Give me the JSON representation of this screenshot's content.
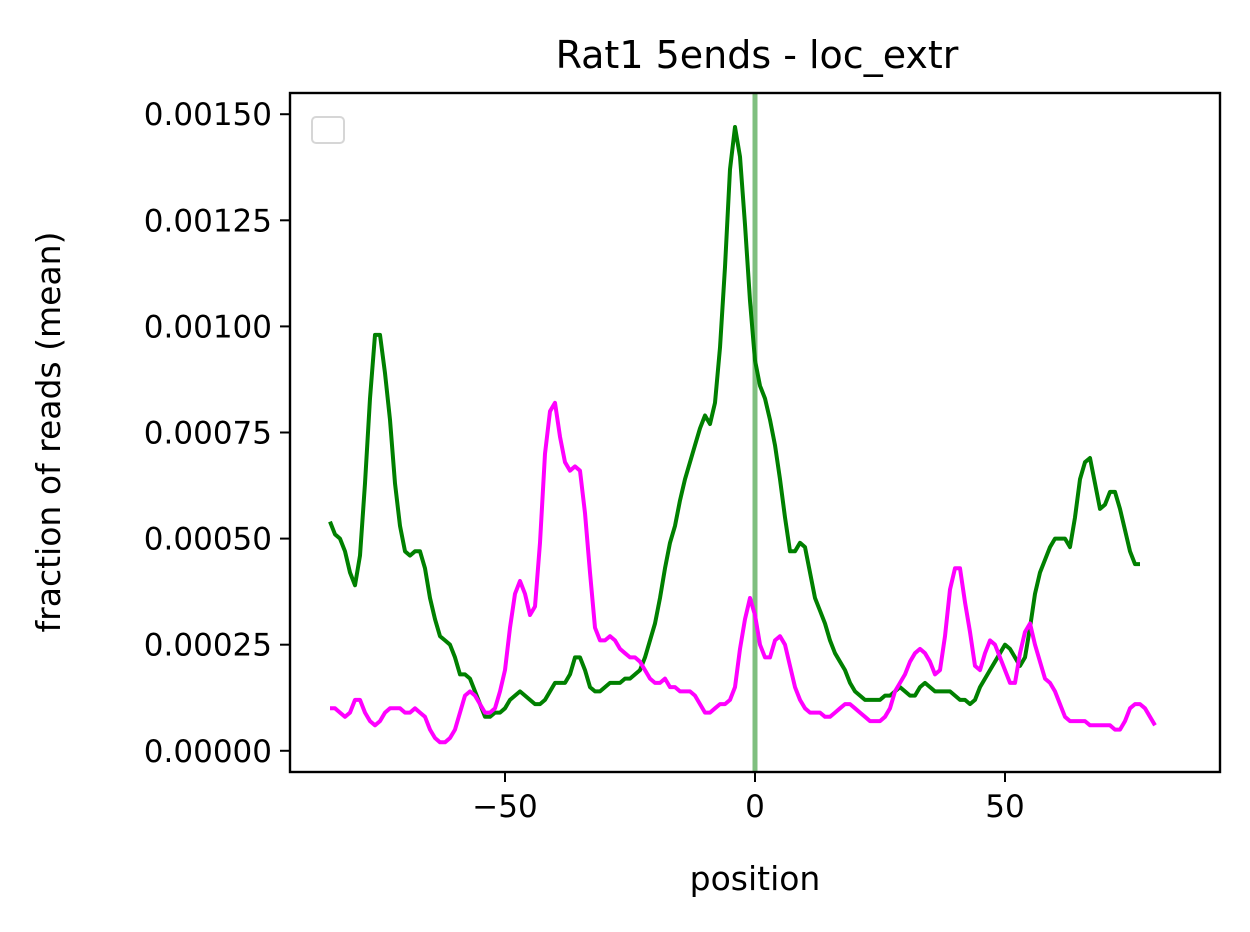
{
  "chart_data": {
    "type": "line",
    "title": "Rat1 5ends - loc_extr",
    "xlabel": "position",
    "ylabel": "fraction of reads (mean)",
    "xlim": [
      -93,
      93
    ],
    "ylim": [
      -5e-05,
      0.00155
    ],
    "xticks": [
      -50,
      0,
      50
    ],
    "xtick_labels": [
      "−50",
      "0",
      "50"
    ],
    "yticks": [
      0,
      0.00025,
      0.0005,
      0.00075,
      0.001,
      0.00125,
      0.0015
    ],
    "ytick_labels": [
      "0.00000",
      "0.00025",
      "0.00050",
      "0.00075",
      "0.00100",
      "0.00125",
      "0.00150"
    ],
    "grid": false,
    "legend": "top-left (empty)",
    "vline": {
      "x": 0,
      "color": "#7fbf7f"
    },
    "x_start": -85,
    "x_step": 1,
    "series": [
      {
        "color": "#008000",
        "values": [
          0.00054,
          0.00051,
          0.0005,
          0.00047,
          0.00042,
          0.00039,
          0.00046,
          0.00063,
          0.00083,
          0.00098,
          0.00098,
          0.00089,
          0.00078,
          0.00063,
          0.00053,
          0.00047,
          0.00046,
          0.00047,
          0.00047,
          0.00043,
          0.00036,
          0.00031,
          0.00027,
          0.00026,
          0.00025,
          0.00022,
          0.00018,
          0.00018,
          0.00017,
          0.00014,
          0.00011,
          8e-05,
          8e-05,
          9e-05,
          9e-05,
          0.0001,
          0.00012,
          0.00013,
          0.00014,
          0.00013,
          0.00012,
          0.00011,
          0.00011,
          0.00012,
          0.00014,
          0.00016,
          0.00016,
          0.00016,
          0.00018,
          0.00022,
          0.00022,
          0.00019,
          0.00015,
          0.00014,
          0.00014,
          0.00015,
          0.00016,
          0.00016,
          0.00016,
          0.00017,
          0.00017,
          0.00018,
          0.00019,
          0.00022,
          0.00026,
          0.0003,
          0.00036,
          0.00043,
          0.00049,
          0.00053,
          0.00059,
          0.00064,
          0.00068,
          0.00072,
          0.00076,
          0.00079,
          0.00077,
          0.00082,
          0.00095,
          0.00114,
          0.00137,
          0.00147,
          0.0014,
          0.00124,
          0.00106,
          0.00092,
          0.00086,
          0.00083,
          0.00078,
          0.00072,
          0.00064,
          0.00055,
          0.00047,
          0.00047,
          0.00049,
          0.00048,
          0.00042,
          0.00036,
          0.00033,
          0.0003,
          0.00026,
          0.00023,
          0.00021,
          0.00019,
          0.00016,
          0.00014,
          0.00013,
          0.00012,
          0.00012,
          0.00012,
          0.00012,
          0.00013,
          0.00013,
          0.00014,
          0.00015,
          0.00014,
          0.00013,
          0.00013,
          0.00015,
          0.00016,
          0.00015,
          0.00014,
          0.00014,
          0.00014,
          0.00014,
          0.00013,
          0.00012,
          0.00012,
          0.00011,
          0.00012,
          0.00015,
          0.00017,
          0.00019,
          0.00021,
          0.00023,
          0.00025,
          0.00024,
          0.00022,
          0.0002,
          0.00022,
          0.00029,
          0.00037,
          0.00042,
          0.00045,
          0.00048,
          0.0005,
          0.0005,
          0.0005,
          0.00048,
          0.00055,
          0.00064,
          0.00068,
          0.00069,
          0.00063,
          0.00057,
          0.00058,
          0.00061,
          0.00061,
          0.00057,
          0.00052,
          0.00047,
          0.00044,
          0.00044
        ]
      },
      {
        "color": "#ff00ff",
        "values": [
          0.0001,
          0.0001,
          9e-05,
          8e-05,
          9e-05,
          0.00012,
          0.00012,
          9e-05,
          7e-05,
          6e-05,
          7e-05,
          9e-05,
          0.0001,
          0.0001,
          0.0001,
          9e-05,
          9e-05,
          0.0001,
          9e-05,
          8e-05,
          5e-05,
          3e-05,
          2e-05,
          2e-05,
          3e-05,
          5e-05,
          9e-05,
          0.00013,
          0.00014,
          0.00013,
          0.00011,
          9e-05,
          9e-05,
          0.0001,
          0.00014,
          0.00019,
          0.00029,
          0.00037,
          0.0004,
          0.00037,
          0.00032,
          0.00034,
          0.00049,
          0.0007,
          0.0008,
          0.00082,
          0.00074,
          0.00068,
          0.00066,
          0.00067,
          0.00066,
          0.00056,
          0.00042,
          0.00029,
          0.00026,
          0.00026,
          0.00027,
          0.00026,
          0.00024,
          0.00023,
          0.00022,
          0.00022,
          0.00021,
          0.00019,
          0.00017,
          0.00016,
          0.00016,
          0.00017,
          0.00015,
          0.00015,
          0.00014,
          0.00014,
          0.00014,
          0.00013,
          0.00011,
          9e-05,
          9e-05,
          0.0001,
          0.00011,
          0.00011,
          0.00012,
          0.00015,
          0.00024,
          0.00031,
          0.00036,
          0.00032,
          0.00025,
          0.00022,
          0.00022,
          0.00026,
          0.00027,
          0.00025,
          0.0002,
          0.00015,
          0.00012,
          0.0001,
          9e-05,
          9e-05,
          9e-05,
          8e-05,
          8e-05,
          9e-05,
          0.0001,
          0.00011,
          0.00011,
          0.0001,
          9e-05,
          8e-05,
          7e-05,
          7e-05,
          7e-05,
          8e-05,
          0.0001,
          0.00014,
          0.00016,
          0.00018,
          0.00021,
          0.00023,
          0.00024,
          0.00023,
          0.00021,
          0.00018,
          0.00019,
          0.00027,
          0.00038,
          0.00043,
          0.00043,
          0.00035,
          0.00028,
          0.0002,
          0.00019,
          0.00023,
          0.00026,
          0.00025,
          0.00022,
          0.00019,
          0.00016,
          0.00016,
          0.00023,
          0.00028,
          0.0003,
          0.00025,
          0.00021,
          0.00017,
          0.00016,
          0.00014,
          0.00011,
          8e-05,
          7e-05,
          7e-05,
          7e-05,
          7e-05,
          6e-05,
          6e-05,
          6e-05,
          6e-05,
          6e-05,
          5e-05,
          5e-05,
          7e-05,
          0.0001,
          0.00011,
          0.00011,
          0.0001,
          8e-05,
          6e-05
        ]
      }
    ]
  }
}
